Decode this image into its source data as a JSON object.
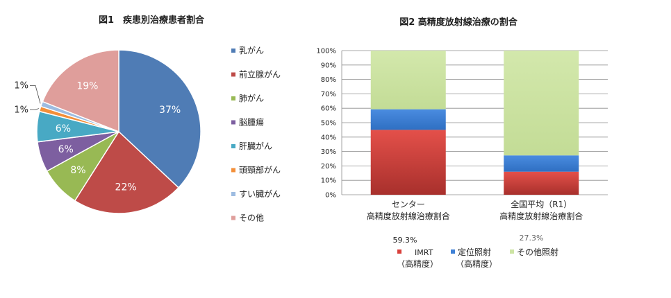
{
  "chart_data": [
    {
      "type": "pie",
      "title": "図1　疾患別治療患者割合",
      "labels": [
        "乳がん",
        "前立腺がん",
        "肺がん",
        "脳腫瘍",
        "肝臓がん",
        "頭頸部がん",
        "すい臓がん",
        "その他"
      ],
      "values": [
        37,
        22,
        8,
        6,
        6,
        1,
        1,
        19
      ],
      "data_labels": [
        "37%",
        "22%",
        "8%",
        "6%",
        "6%",
        "1%",
        "1%",
        "19%"
      ],
      "colors": [
        "#4f7cb5",
        "#be4b48",
        "#98b954",
        "#7d5fa0",
        "#48a9c4",
        "#f38f39",
        "#9dbce1",
        "#df9e9b"
      ],
      "legend_position": "right"
    },
    {
      "type": "bar",
      "stacked": true,
      "title": "図2 高精度放射線治療の割合",
      "categories": [
        [
          "センター",
          "高精度放射線治療割合"
        ],
        [
          "全国平均（R1）",
          "高精度放射線治療割合"
        ]
      ],
      "series": [
        {
          "name": "IMRT",
          "name_sub": "（高精度）",
          "values": [
            45,
            16
          ],
          "color": "#d9403b"
        },
        {
          "name": "定位照射",
          "name_sub": "（高精度）",
          "values": [
            14.3,
            11.3
          ],
          "color": "#3f81d6"
        },
        {
          "name": "その他照射",
          "values": [
            40.7,
            72.7
          ],
          "color": "#cde4a4"
        }
      ],
      "annotations": [
        "59.3%",
        "27.3%"
      ],
      "yticks": [
        "0%",
        "10%",
        "20%",
        "30%",
        "40%",
        "50%",
        "60%",
        "70%",
        "80%",
        "90%",
        "100%"
      ],
      "ylim": [
        0,
        100
      ],
      "grid": true,
      "legend_position": "bottom"
    }
  ]
}
